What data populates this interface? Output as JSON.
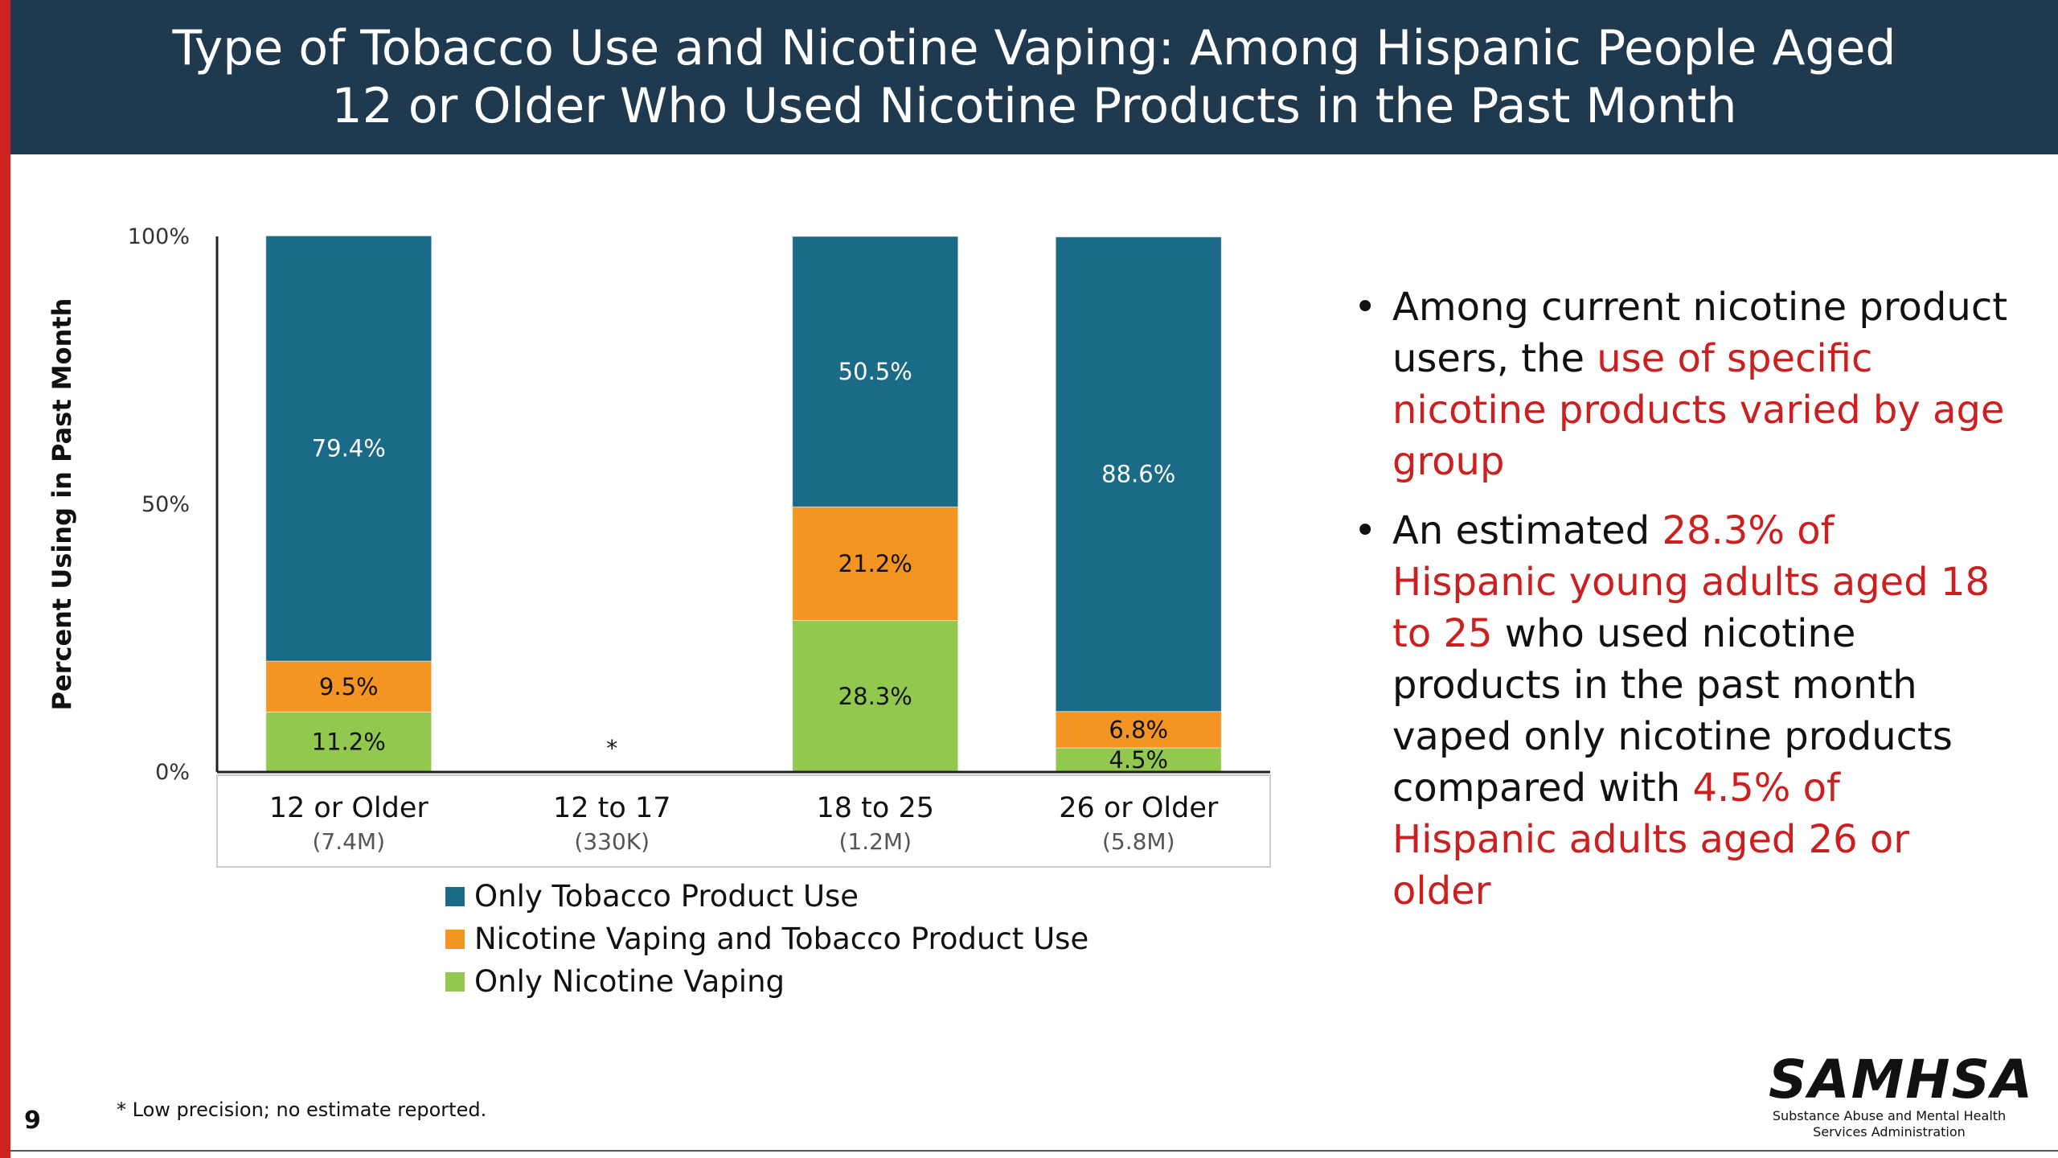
{
  "title": "Type of Tobacco Use and Nicotine Vaping: Among Hispanic People Aged\n12 or Older Who Used Nicotine Products in the Past Month",
  "chart_data": {
    "type": "bar",
    "stacked": true,
    "ylabel": "Percent Using in Past Month",
    "ylim": [
      0,
      100
    ],
    "yticks": [
      "0%",
      "50%",
      "100%"
    ],
    "categories": [
      "12 or Older",
      "12 to 17",
      "18 to 25",
      "26 or Older"
    ],
    "category_sublabels": [
      "(7.4M)",
      "(330K)",
      "(1.2M)",
      "(5.8M)"
    ],
    "series": [
      {
        "name": "Only Nicotine Vaping",
        "color": "#92c84e",
        "values": [
          11.2,
          null,
          28.3,
          4.5
        ],
        "labels": [
          "11.2%",
          "",
          "28.3%",
          "4.5%"
        ]
      },
      {
        "name": "Nicotine Vaping and Tobacco Product Use",
        "color": "#f39423",
        "values": [
          9.5,
          null,
          21.2,
          6.8
        ],
        "labels": [
          "9.5%",
          "",
          "21.2%",
          "6.8%"
        ]
      },
      {
        "name": "Only Tobacco Product Use",
        "color": "#1b6a87",
        "values": [
          79.4,
          null,
          50.5,
          88.6
        ],
        "labels": [
          "79.4%",
          "",
          "50.5%",
          "88.6%"
        ]
      }
    ],
    "missing_marker": "*",
    "legend": [
      "Only Tobacco Product Use",
      "Nicotine Vaping and Tobacco Product Use",
      "Only Nicotine Vaping"
    ],
    "legend_position": "bottom"
  },
  "legend_items": [
    {
      "label": "Only Tobacco Product Use",
      "color": "#1b6a87"
    },
    {
      "label": "Nicotine Vaping and Tobacco Product Use",
      "color": "#f39423"
    },
    {
      "label": "Only Nicotine Vaping",
      "color": "#92c84e"
    }
  ],
  "bullets": [
    [
      {
        "text": "Among current nicotine product users, the ",
        "red": false
      },
      {
        "text": "use of specific nicotine products varied by age group",
        "red": true
      }
    ],
    [
      {
        "text": "An estimated ",
        "red": false
      },
      {
        "text": "28.3% of Hispanic young adults aged 18 to 25",
        "red": true
      },
      {
        "text": " who used nicotine products in the past month vaped only nicotine products compared with ",
        "red": false
      },
      {
        "text": "4.5% of Hispanic adults aged 26 or older",
        "red": true
      }
    ]
  ],
  "footnote": "* Low precision; no estimate reported.",
  "page_number": "9",
  "logo": {
    "word": "SAMHSA",
    "subtitle": "Substance Abuse and Mental Health Services Administration"
  },
  "colors": {
    "header_bg": "#1f3a4f",
    "accent_red": "#cc1f1f",
    "stripe": "#cc2222"
  }
}
